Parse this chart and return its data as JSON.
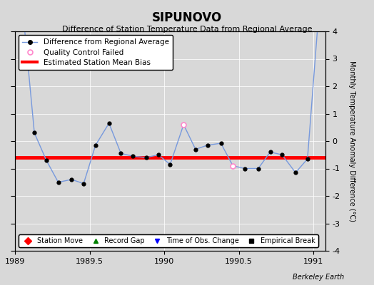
{
  "title": "SIPUNOVO",
  "subtitle": "Difference of Station Temperature Data from Regional Average",
  "ylabel_right": "Monthly Temperature Anomaly Difference (°C)",
  "background_color": "#d8d8d8",
  "plot_bg_color": "#d8d8d8",
  "xlim": [
    1989.0,
    1991.08
  ],
  "ylim": [
    -4,
    4
  ],
  "yticks": [
    -4,
    -3,
    -2,
    -1,
    0,
    1,
    2,
    3,
    4
  ],
  "xticks": [
    1989,
    1989.5,
    1990,
    1990.5,
    1991
  ],
  "xticklabels": [
    "1989",
    "1989.5",
    "1990",
    "1990.5",
    "1991"
  ],
  "bias_value": -0.6,
  "line_color": "#7799dd",
  "bias_color": "red",
  "qc_fail_color": "#ff88cc",
  "data_x": [
    1989.04,
    1989.13,
    1989.21,
    1989.29,
    1989.38,
    1989.46,
    1989.54,
    1989.63,
    1989.71,
    1989.79,
    1989.88,
    1989.96,
    1990.04,
    1990.13,
    1990.21,
    1990.29,
    1990.38,
    1990.46,
    1990.54,
    1990.63,
    1990.71,
    1990.79,
    1990.88,
    1990.96,
    1991.04
  ],
  "data_y": [
    5.5,
    0.3,
    -0.7,
    -1.5,
    -1.4,
    -1.55,
    -0.15,
    0.65,
    -0.45,
    -0.55,
    -0.6,
    -0.5,
    -0.85,
    0.6,
    -0.3,
    -0.15,
    -0.08,
    -0.9,
    -1.0,
    -1.0,
    -0.4,
    -0.5,
    -1.15,
    -0.65,
    5.0
  ],
  "qc_fail_indices": [
    13,
    17
  ],
  "berkeley_earth_text": "Berkeley Earth",
  "legend1_labels": [
    "Difference from Regional Average",
    "Quality Control Failed",
    "Estimated Station Mean Bias"
  ],
  "legend2_labels": [
    "Station Move",
    "Record Gap",
    "Time of Obs. Change",
    "Empirical Break"
  ]
}
